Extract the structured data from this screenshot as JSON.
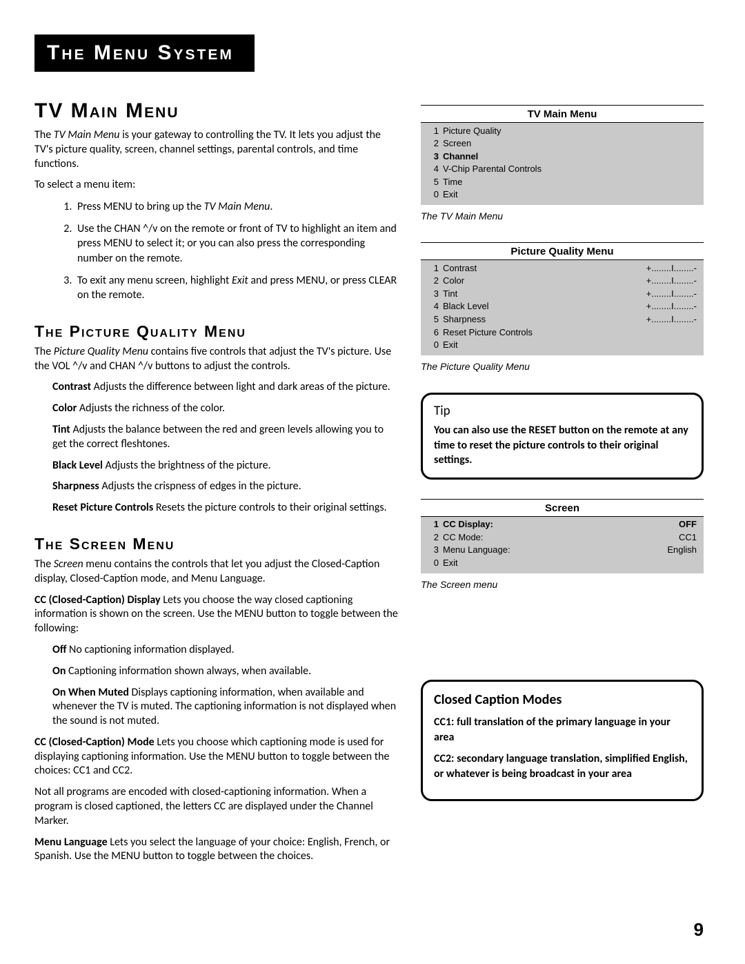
{
  "banner": "The Menu System",
  "page_number": "9",
  "left": {
    "tv_main": {
      "heading": "TV Main Menu",
      "intro_html": "The <em>TV Main Menu</em> is your gateway to controlling the TV.  It lets you adjust the TV's  picture quality, screen, channel settings, parental controls, and time functions.",
      "to_select": "To select a menu item:",
      "steps": [
        "Press MENU to bring up the <em>TV Main Menu</em>.",
        "Use the CHAN ^/v on the remote or front of TV to highlight an item and press MENU to select it; or you can also press the corresponding number on the remote.",
        "To exit any menu screen, highlight <em>Exit</em> and press MENU, or press CLEAR on the remote."
      ]
    },
    "pq": {
      "heading": "The Picture Quality Menu",
      "intro_html": "The <em>Picture Quality Menu</em> contains five controls that adjust the TV's picture. Use the VOL ^/v and CHAN ^/v buttons to adjust the controls.",
      "defs": [
        {
          "term": "Contrast",
          "desc": "  Adjusts the difference between light and dark areas of the picture."
        },
        {
          "term": "Color",
          "desc": "   Adjusts the richness of the color."
        },
        {
          "term": "Tint",
          "desc": " Adjusts the balance between the red and green levels allowing you to get the correct fleshtones."
        },
        {
          "term": "Black Level",
          "desc": "  Adjusts the brightness of the picture."
        },
        {
          "term": "Sharpness",
          "desc": "  Adjusts the crispness of edges in the picture."
        },
        {
          "term": "Reset Picture Controls",
          "desc": "  Resets the picture controls to their original settings."
        }
      ]
    },
    "screen": {
      "heading": "The Screen Menu",
      "intro_html": "The <em>Screen</em> menu contains the controls that let you adjust the  Closed-Caption display, Closed-Caption mode, and Menu Language.",
      "cc_display": {
        "term": "CC (Closed-Caption) Display",
        "desc": "  Lets you choose the way closed captioning information is shown on the screen. Use the MENU button to toggle between the following:"
      },
      "cc_display_opts": [
        {
          "term": "Off",
          "desc": "  No captioning information displayed."
        },
        {
          "term": "On",
          "desc": "  Captioning information shown always, when available."
        },
        {
          "term": "On When Muted",
          "desc": " Displays captioning information, when available and whenever the TV is muted. The captioning information is not displayed when the sound is not muted."
        }
      ],
      "cc_mode": {
        "term": "CC (Closed-Caption) Mode",
        "desc": " Lets you choose which captioning mode is used for displaying captioning information. Use the MENU button to toggle between the choices: CC1 and CC2."
      },
      "cc_note": "Not all programs are encoded with closed-captioning information. When a program is closed captioned, the letters CC are displayed under the Channel Marker.",
      "menu_lang": {
        "term": "Menu Language",
        "desc": " Lets you select the language of your choice: English, French, or Spanish. Use the MENU button to toggle between the choices."
      }
    }
  },
  "right": {
    "tv_main_menu": {
      "title": "TV Main Menu",
      "items": [
        {
          "num": "1",
          "label": "Picture Quality",
          "sel": false
        },
        {
          "num": "2",
          "label": "Screen",
          "sel": false
        },
        {
          "num": "3",
          "label": "Channel",
          "sel": true
        },
        {
          "num": "4",
          "label": "V-Chip Parental Controls",
          "sel": false
        },
        {
          "num": "5",
          "label": "Time",
          "sel": false
        },
        {
          "num": "0",
          "label": "Exit",
          "sel": false
        }
      ],
      "caption": "The TV Main Menu"
    },
    "pq_menu": {
      "title": "Picture Quality Menu",
      "items": [
        {
          "num": "1",
          "label": "Contrast",
          "val": "+........I........-"
        },
        {
          "num": "2",
          "label": "Color",
          "val": "+........I........-"
        },
        {
          "num": "3",
          "label": "Tint",
          "val": "+........I........-"
        },
        {
          "num": "4",
          "label": "Black Level",
          "val": "+........I........-"
        },
        {
          "num": "5",
          "label": "Sharpness",
          "val": "+........I........-"
        },
        {
          "num": "6",
          "label": "Reset Picture Controls",
          "val": ""
        },
        {
          "num": "0",
          "label": "Exit",
          "val": ""
        }
      ],
      "caption": "The Picture Quality Menu"
    },
    "tip": {
      "title": "Tip",
      "body": "You can also use the RESET button on the remote at any time to reset the picture controls to their original settings."
    },
    "screen_menu": {
      "title": "Screen",
      "items": [
        {
          "num": "1",
          "label": "CC Display:",
          "val": "OFF",
          "sel": true
        },
        {
          "num": "2",
          "label": "CC Mode:",
          "val": "CC1",
          "sel": false
        },
        {
          "num": "3",
          "label": "Menu Language:",
          "val": "English",
          "sel": false
        },
        {
          "num": "0",
          "label": "Exit",
          "val": "",
          "sel": false
        }
      ],
      "caption": "The Screen menu"
    },
    "ccm": {
      "title": "Closed Caption Modes",
      "items": [
        "CC1: full translation of the primary language in your area",
        "CC2: secondary language translation, simplified English, or whatever is being broadcast in your area"
      ]
    }
  }
}
